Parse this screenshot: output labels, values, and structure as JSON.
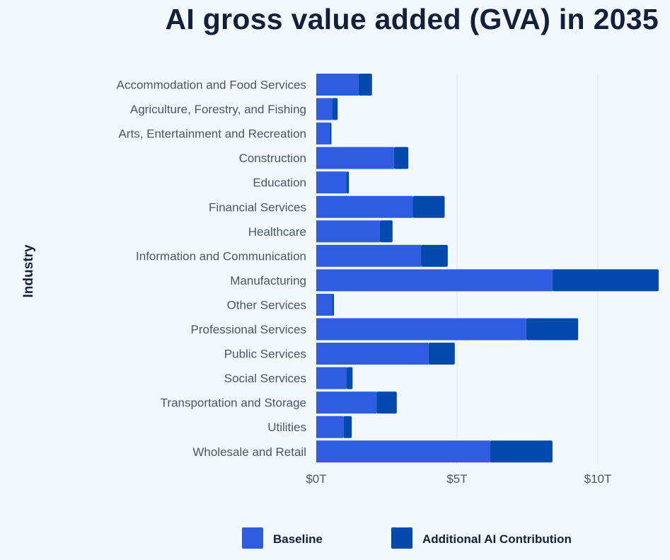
{
  "chart_data": {
    "type": "bar",
    "orientation": "horizontal",
    "stacked": true,
    "title": "AI gross value added (GVA) in 2035",
    "xlabel": "",
    "ylabel": "Industry",
    "xlim": [
      0,
      12.2
    ],
    "x_ticks": [
      0,
      5,
      10
    ],
    "x_tick_labels": [
      "$0T",
      "$5T",
      "$10T"
    ],
    "grid": "vertical",
    "legend_position": "bottom",
    "categories": [
      "Accommodation and Food Services",
      "Agriculture, Forestry, and Fishing",
      "Arts, Entertainment and Recreation",
      "Construction",
      "Education",
      "Financial Services",
      "Healthcare",
      "Information and Communication",
      "Manufacturing",
      "Other Services",
      "Professional Services",
      "Public Services",
      "Social Services",
      "Transportation and Storage",
      "Utilities",
      "Wholesale and Retail"
    ],
    "series": [
      {
        "name": "Baseline",
        "color": "#2f5ce0",
        "values": [
          1.5,
          0.56,
          0.48,
          2.76,
          1.06,
          3.43,
          2.26,
          3.72,
          8.39,
          0.56,
          7.46,
          3.99,
          1.08,
          2.14,
          0.97,
          6.18
        ]
      },
      {
        "name": "Additional AI Contribution",
        "color": "#034aae",
        "values": [
          0.48,
          0.2,
          0.06,
          0.51,
          0.1,
          1.13,
          0.45,
          0.95,
          3.77,
          0.07,
          1.84,
          0.93,
          0.21,
          0.72,
          0.29,
          2.21
        ]
      }
    ]
  }
}
